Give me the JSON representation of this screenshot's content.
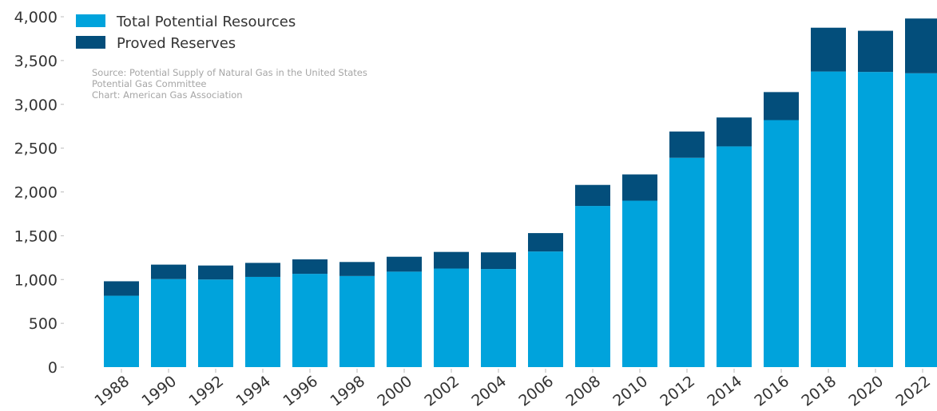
{
  "chart_data": {
    "type": "bar",
    "stacked": true,
    "categories": [
      "1988",
      "1990",
      "1992",
      "1994",
      "1996",
      "1998",
      "2000",
      "2002",
      "2004",
      "2006",
      "2008",
      "2010",
      "2012",
      "2014",
      "2016",
      "2018",
      "2020",
      "2022"
    ],
    "series": [
      {
        "name": "Total Potential Resources",
        "color": "#00a3dc",
        "values": [
          815,
          1005,
          1000,
          1030,
          1065,
          1040,
          1090,
          1125,
          1120,
          1320,
          1840,
          1900,
          2390,
          2520,
          2820,
          3375,
          3370,
          3355
        ]
      },
      {
        "name": "Proved Reserves",
        "color": "#034e7b",
        "values": [
          165,
          165,
          160,
          160,
          165,
          160,
          170,
          190,
          190,
          210,
          240,
          300,
          300,
          330,
          320,
          500,
          470,
          625
        ]
      }
    ],
    "ylim": [
      0,
      4000
    ],
    "yticks": [
      0,
      500,
      1000,
      1500,
      2000,
      2500,
      3000,
      3500,
      4000
    ],
    "ytick_labels": [
      "0",
      "500",
      "1,000",
      "1,500",
      "2,000",
      "2,500",
      "3,000",
      "3,500",
      "4,000"
    ],
    "grid": false,
    "legend_position": "top-left",
    "notes": [
      "Source: Potential Supply of Natural Gas in the United States",
      "Potential Gas Committee",
      "Chart: American Gas Association"
    ]
  }
}
